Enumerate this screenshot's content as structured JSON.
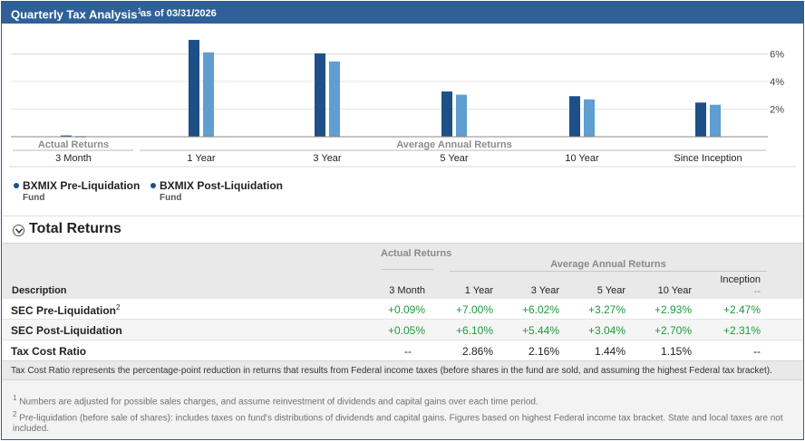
{
  "header": {
    "title": "Quarterly Tax Analysis",
    "title_sup": "1",
    "as_of": "as of 03/31/2026"
  },
  "colors": {
    "pre": "#1e4f86",
    "post": "#5f9ed0",
    "header_bg": "#2f6098",
    "positive": "#1f9a3c"
  },
  "chart_data": {
    "type": "bar",
    "categories": [
      "3 Month",
      "1 Year",
      "3 Year",
      "5 Year",
      "10 Year",
      "Since Inception"
    ],
    "series": [
      {
        "name": "BXMIX Pre-Liquidation Fund",
        "values": [
          0.09,
          7.0,
          6.02,
          3.27,
          2.93,
          2.47
        ]
      },
      {
        "name": "BXMIX Post-Liquidation Fund",
        "values": [
          0.05,
          6.1,
          5.44,
          3.04,
          2.7,
          2.31
        ]
      }
    ],
    "yticks": [
      "2%",
      "4%",
      "6%"
    ],
    "ytick_values": [
      2,
      4,
      6
    ],
    "ylim": [
      0,
      7.2
    ],
    "group_labels": {
      "actual": "Actual Returns",
      "average": "Average Annual Returns"
    },
    "legend_position": "bottom-left"
  },
  "legend": [
    {
      "name": "BXMIX Pre-Liquidation",
      "sub": "Fund"
    },
    {
      "name": "BXMIX Post-Liquidation",
      "sub": "Fund"
    }
  ],
  "section": {
    "title": "Total Returns"
  },
  "table": {
    "group_actual": "Actual Returns",
    "group_average": "Average Annual Returns",
    "col_description": "Description",
    "col_3m": "3 Month",
    "col_1y": "1 Year",
    "col_3y": "3 Year",
    "col_5y": "5 Year",
    "col_10y": "10 Year",
    "col_inception": "Inception",
    "col_inception_sub": "--",
    "rows": [
      {
        "desc": "SEC Pre-Liquidation",
        "sup": "2",
        "v3m": "+0.09%",
        "v1y": "+7.00%",
        "v3y": "+6.02%",
        "v5y": "+3.27%",
        "v10y": "+2.93%",
        "vinc": "+2.47%"
      },
      {
        "desc": "SEC Post-Liquidation",
        "sup": "",
        "v3m": "+0.05%",
        "v1y": "+6.10%",
        "v3y": "+5.44%",
        "v5y": "+3.04%",
        "v10y": "+2.70%",
        "vinc": "+2.31%"
      },
      {
        "desc": "Tax Cost Ratio",
        "sup": "",
        "v3m": "--",
        "v1y": "2.86%",
        "v3y": "2.16%",
        "v5y": "1.44%",
        "v10y": "1.15%",
        "vinc": "--"
      }
    ]
  },
  "note": "Tax Cost Ratio represents the percentage-point reduction in returns that results from Federal income taxes (before shares in the fund are sold, and assuming the highest Federal tax bracket).",
  "footnotes": [
    {
      "num": "1",
      "text": "Numbers are adjusted for possible sales charges, and assume reinvestment of dividends and capital gains over each time period."
    },
    {
      "num": "2",
      "text": "Pre-liquidation (before sale of shares): includes taxes on fund's distributions of dividends and capital gains. Figures based on highest Federal income tax bracket. State and local taxes are not included."
    }
  ]
}
